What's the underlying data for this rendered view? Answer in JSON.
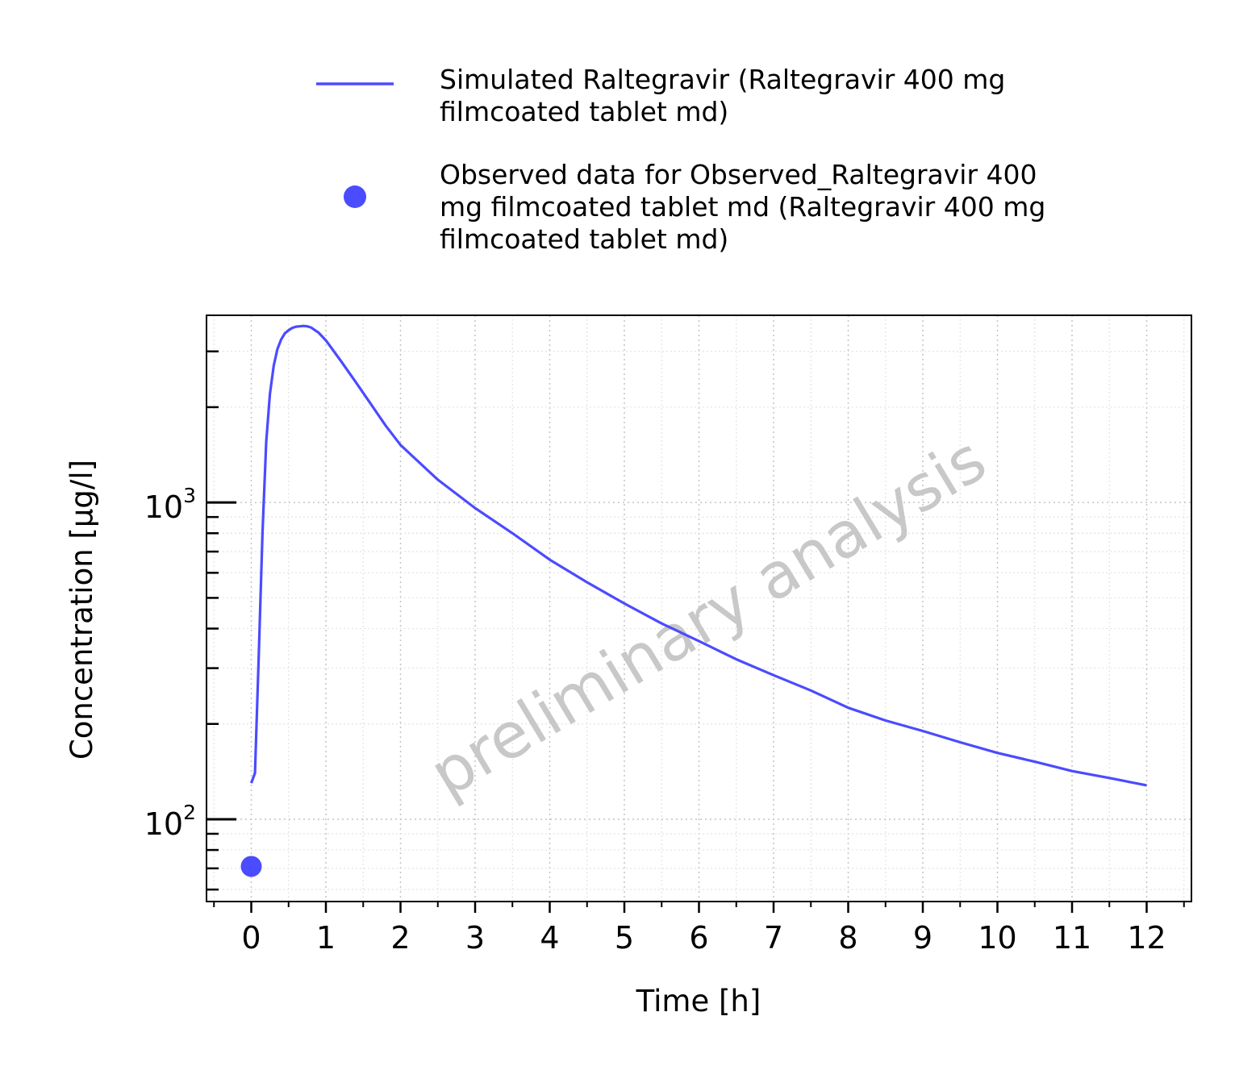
{
  "chart_data": {
    "type": "line",
    "xlabel": "Time [h]",
    "ylabel": "Concentration [µg/l]",
    "xlim": [
      -0.6,
      12.6
    ],
    "ylim": [
      55,
      3900
    ],
    "yscale": "log",
    "xticks": [
      0,
      1,
      2,
      3,
      4,
      5,
      6,
      7,
      8,
      9,
      10,
      11,
      12
    ],
    "yticks": [
      {
        "value": 100,
        "base": "10",
        "exp": "2"
      },
      {
        "value": 1000,
        "base": "10",
        "exp": "3"
      }
    ],
    "grid": true,
    "legend_position": "top",
    "watermark": "preliminary analysis",
    "series": [
      {
        "name": "Simulated Raltegravir (Raltegravir 400 mg filmcoated tablet md)",
        "kind": "line",
        "color": "#4b4bff",
        "x": [
          0,
          0.05,
          0.1,
          0.15,
          0.2,
          0.25,
          0.3,
          0.35,
          0.4,
          0.45,
          0.5,
          0.55,
          0.6,
          0.65,
          0.7,
          0.75,
          0.8,
          0.9,
          1.0,
          1.2,
          1.4,
          1.6,
          1.8,
          2.0,
          2.5,
          3.0,
          3.5,
          4.0,
          4.5,
          5.0,
          5.5,
          6.0,
          6.5,
          7.0,
          7.5,
          8.0,
          8.5,
          9.0,
          9.5,
          10.0,
          10.5,
          11.0,
          11.5,
          12.0
        ],
        "y": [
          130,
          140,
          330,
          800,
          1550,
          2200,
          2700,
          3050,
          3270,
          3420,
          3500,
          3560,
          3590,
          3600,
          3610,
          3600,
          3570,
          3440,
          3250,
          2800,
          2400,
          2050,
          1750,
          1520,
          1180,
          960,
          800,
          660,
          560,
          480,
          415,
          365,
          320,
          285,
          255,
          225,
          205,
          190,
          175,
          162,
          152,
          142,
          135,
          128
        ]
      },
      {
        "name": "Observed data for Observed_Raltegravir 400 mg filmcoated tablet md (Raltegravir 400 mg filmcoated tablet md)",
        "kind": "scatter",
        "color": "#4b4bff",
        "x": [
          0
        ],
        "y": [
          71
        ]
      }
    ]
  },
  "legend": {
    "entries": [
      {
        "lines": [
          "Simulated Raltegravir (Raltegravir 400 mg",
          "filmcoated tablet md)"
        ]
      },
      {
        "lines": [
          "Observed data for Observed_Raltegravir 400",
          "mg filmcoated tablet md (Raltegravir 400 mg",
          "filmcoated tablet md)"
        ]
      }
    ]
  }
}
